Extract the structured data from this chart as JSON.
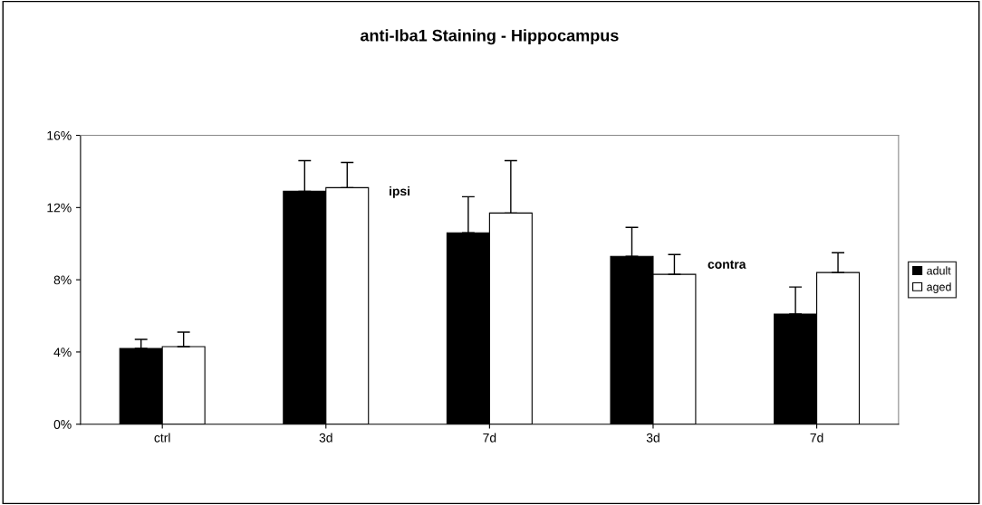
{
  "chart_data": {
    "type": "bar",
    "title": "anti-Iba1 Staining - Hippocampus",
    "categories": [
      "ctrl",
      "3d",
      "7d",
      "3d",
      "7d"
    ],
    "series": [
      {
        "name": "adult",
        "color": "#000000",
        "values": [
          4.2,
          12.9,
          10.6,
          9.3,
          6.1
        ],
        "errors": [
          [
            4.2,
            4.7
          ],
          [
            12.9,
            14.6
          ],
          [
            10.6,
            12.6
          ],
          [
            9.3,
            10.9
          ],
          [
            6.1,
            7.6
          ]
        ]
      },
      {
        "name": "aged",
        "color": "#ffffff",
        "values": [
          4.3,
          13.1,
          11.7,
          8.3,
          8.4
        ],
        "errors": [
          [
            4.3,
            5.1
          ],
          [
            13.1,
            14.5
          ],
          [
            11.7,
            14.6
          ],
          [
            8.3,
            9.4
          ],
          [
            8.4,
            9.5
          ]
        ]
      }
    ],
    "ylim": [
      0,
      16
    ],
    "yticks": [
      {
        "value": 0,
        "label": "0%"
      },
      {
        "value": 4,
        "label": "4%"
      },
      {
        "value": 8,
        "label": "8%"
      },
      {
        "value": 12,
        "label": "12%"
      },
      {
        "value": 16,
        "label": "16%"
      }
    ],
    "annotations": [
      "ipsi",
      "contra"
    ],
    "grid": false,
    "legend": "right"
  }
}
